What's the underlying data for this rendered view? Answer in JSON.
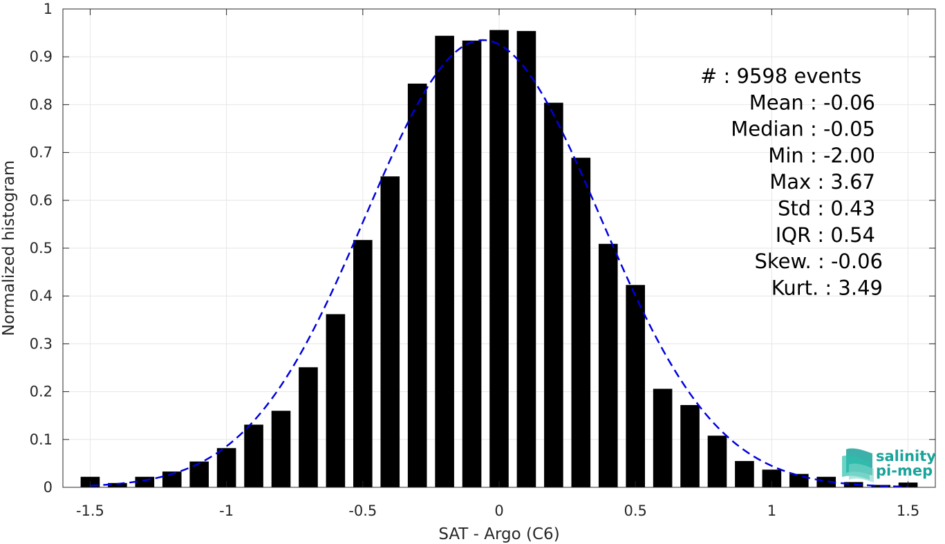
{
  "chart_data": {
    "type": "bar",
    "xlabel": "SAT - Argo (C6)",
    "ylabel": "Normalized histogram",
    "xlim": [
      -1.6,
      1.6
    ],
    "ylim": [
      0,
      1
    ],
    "grid": true,
    "x_ticks": [
      -1.5,
      -1,
      -0.5,
      0,
      0.5,
      1,
      1.5
    ],
    "x_tick_labels": [
      "-1.5",
      "-1",
      "-0.5",
      "0",
      "0.5",
      "1",
      "1.5"
    ],
    "y_ticks": [
      0,
      0.1,
      0.2,
      0.3,
      0.4,
      0.5,
      0.6,
      0.7,
      0.8,
      0.9,
      1
    ],
    "y_tick_labels": [
      "0",
      "0.1",
      "0.2",
      "0.3",
      "0.4",
      "0.5",
      "0.6",
      "0.7",
      "0.8",
      "0.9",
      "1"
    ],
    "bar_width": 0.07,
    "bar_color": "#000000",
    "bins_x": [
      -1.5,
      -1.4,
      -1.3,
      -1.2,
      -1.1,
      -1.0,
      -0.9,
      -0.8,
      -0.7,
      -0.6,
      -0.5,
      -0.4,
      -0.3,
      -0.2,
      -0.1,
      0.0,
      0.1,
      0.2,
      0.3,
      0.4,
      0.5,
      0.6,
      0.7,
      0.8,
      0.9,
      1.0,
      1.1,
      1.2,
      1.3,
      1.4,
      1.5
    ],
    "values": [
      0.022,
      0.009,
      0.022,
      0.033,
      0.054,
      0.082,
      0.131,
      0.16,
      0.251,
      0.362,
      0.517,
      0.65,
      0.844,
      0.944,
      0.934,
      0.956,
      0.954,
      0.804,
      0.689,
      0.509,
      0.423,
      0.206,
      0.172,
      0.108,
      0.055,
      0.037,
      0.028,
      0.022,
      0.011,
      0.005,
      0.01
    ],
    "fit": {
      "type": "gaussian",
      "mean": -0.06,
      "std": 0.43,
      "peak": 0.935,
      "color": "#0000e0",
      "style": "dashed"
    },
    "stats": [
      "#  : 9598 events",
      "Mean : -0.06",
      "Median : -0.05",
      "Min : -2.00",
      "Max : 3.67",
      "Std : 0.43",
      "IQR : 0.54",
      "Skew. : -0.06",
      "Kurt. : 3.49"
    ],
    "logo": [
      "salinity",
      "pi-mep"
    ]
  }
}
